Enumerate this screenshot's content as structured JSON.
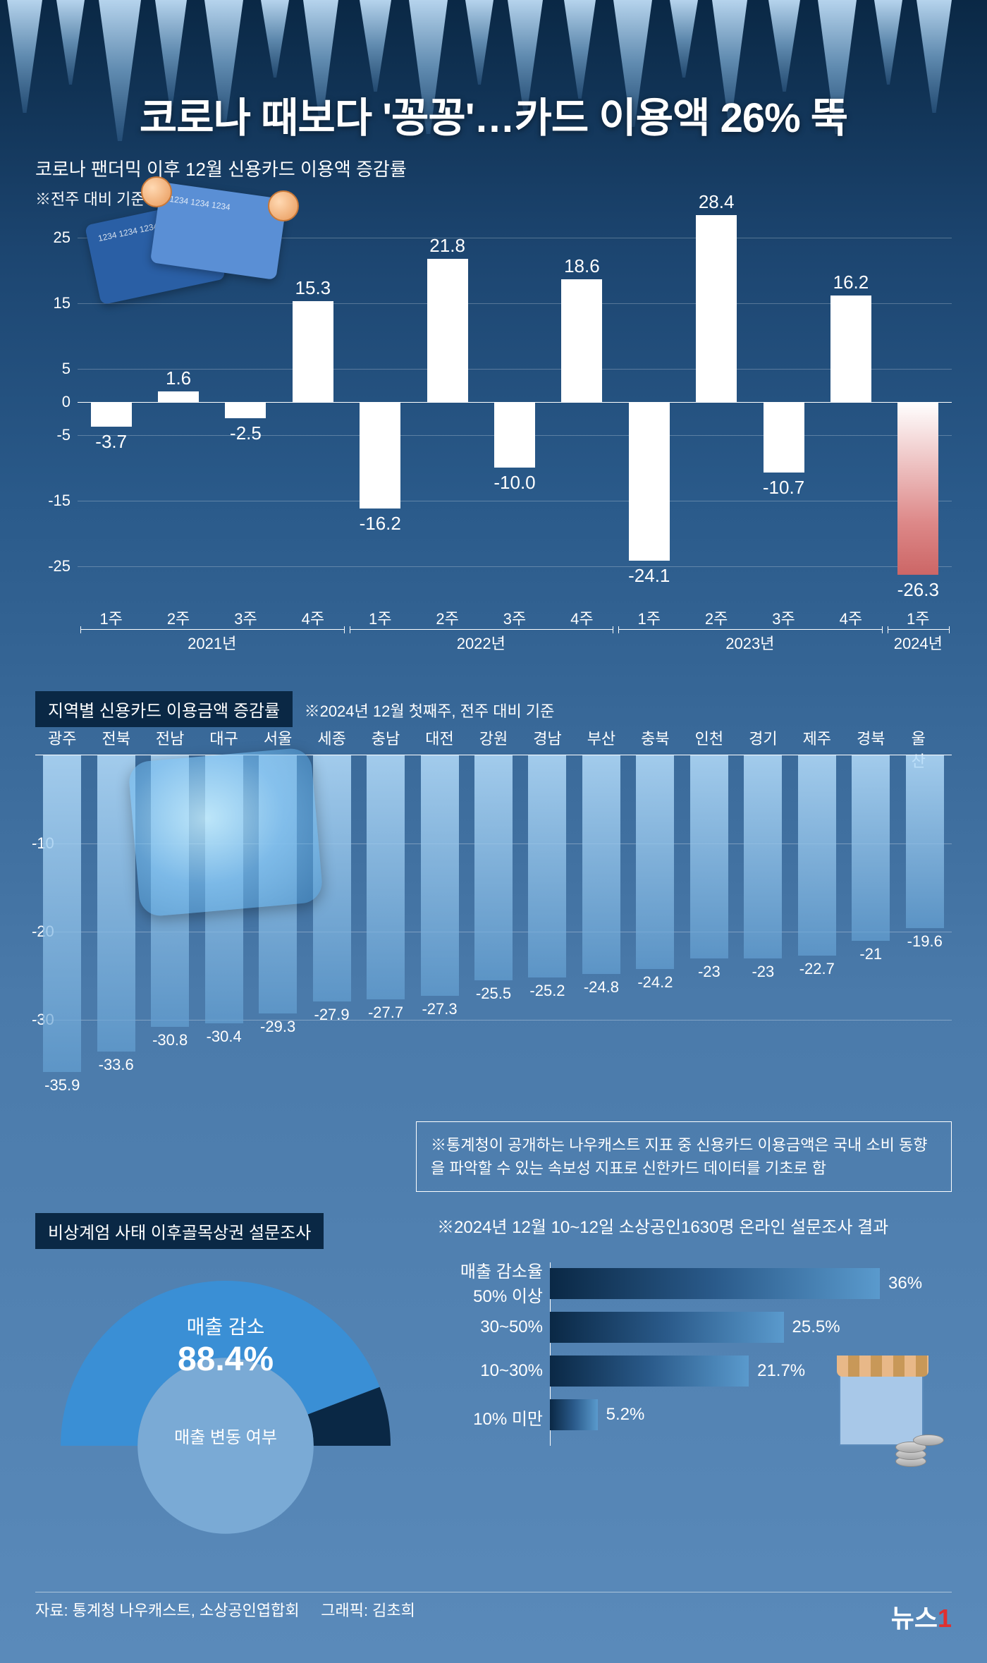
{
  "headline": "코로나 때보다 '꽁꽁'…카드 이용액 26% 뚝",
  "chart1": {
    "title": "코로나 팬더믹 이후 12월 신용카드 이용액 증감률",
    "subtitle": "※전주 대비 기준",
    "ylim": [
      -30,
      30
    ],
    "yticks": [
      -25,
      -15,
      -5,
      0,
      5,
      15,
      25
    ],
    "bar_color": "#ffffff",
    "last_bar_gradient": [
      "#ffffff",
      "#cc6666"
    ],
    "bars": [
      {
        "week": "1주",
        "value": -3.7,
        "label": "-3.7"
      },
      {
        "week": "2주",
        "value": 1.6,
        "label": "1.6"
      },
      {
        "week": "3주",
        "value": -2.5,
        "label": "-2.5"
      },
      {
        "week": "4주",
        "value": 15.3,
        "label": "15.3"
      },
      {
        "week": "1주",
        "value": -16.2,
        "label": "-16.2"
      },
      {
        "week": "2주",
        "value": 21.8,
        "label": "21.8"
      },
      {
        "week": "3주",
        "value": -10.0,
        "label": "-10.0"
      },
      {
        "week": "4주",
        "value": 18.6,
        "label": "18.6"
      },
      {
        "week": "1주",
        "value": -24.1,
        "label": "-24.1"
      },
      {
        "week": "2주",
        "value": 28.4,
        "label": "28.4"
      },
      {
        "week": "3주",
        "value": -10.7,
        "label": "-10.7"
      },
      {
        "week": "4주",
        "value": 16.2,
        "label": "16.2"
      },
      {
        "week": "1주",
        "value": -26.3,
        "label": "-26.3"
      }
    ],
    "year_groups": [
      {
        "label": "2021년",
        "start": 0,
        "end": 4
      },
      {
        "label": "2022년",
        "start": 4,
        "end": 8
      },
      {
        "label": "2023년",
        "start": 8,
        "end": 12
      },
      {
        "label": "2024년",
        "start": 12,
        "end": 13
      }
    ]
  },
  "chart2": {
    "title": "지역별 신용카드 이용금액 증감률",
    "subtitle": "※2024년 12월 첫째주, 전주 대비 기준",
    "ylim": [
      -40,
      0
    ],
    "yticks": [
      -10,
      -20,
      -30
    ],
    "bar_gradient": [
      "#b4dcfa",
      "#64a0d2"
    ],
    "bars": [
      {
        "region": "광주",
        "value": -35.9,
        "label": "-35.9"
      },
      {
        "region": "전북",
        "value": -33.6,
        "label": "-33.6"
      },
      {
        "region": "전남",
        "value": -30.8,
        "label": "-30.8"
      },
      {
        "region": "대구",
        "value": -30.4,
        "label": "-30.4"
      },
      {
        "region": "서울",
        "value": -29.3,
        "label": "-29.3"
      },
      {
        "region": "세종",
        "value": -27.9,
        "label": "-27.9"
      },
      {
        "region": "충남",
        "value": -27.7,
        "label": "-27.7"
      },
      {
        "region": "대전",
        "value": -27.3,
        "label": "-27.3"
      },
      {
        "region": "강원",
        "value": -25.5,
        "label": "-25.5"
      },
      {
        "region": "경남",
        "value": -25.2,
        "label": "-25.2"
      },
      {
        "region": "부산",
        "value": -24.8,
        "label": "-24.8"
      },
      {
        "region": "충북",
        "value": -24.2,
        "label": "-24.2"
      },
      {
        "region": "인천",
        "value": -23,
        "label": "-23"
      },
      {
        "region": "경기",
        "value": -23,
        "label": "-23"
      },
      {
        "region": "제주",
        "value": -22.7,
        "label": "-22.7"
      },
      {
        "region": "경북",
        "value": -21,
        "label": "-21"
      },
      {
        "region": "울산",
        "value": -19.6,
        "label": "-19.6"
      }
    ]
  },
  "note": "※통계청이 공개하는 나우캐스트 지표 중 신용카드 이용금액은 국내 소비 동향을 파악할 수 있는 속보성 지표로 신한카드 데이터를 기초로 함",
  "sec3": {
    "title": "비상계엄 사태 이후골목상권 설문조사",
    "right_title": "※2024년 12월 10~12일 소상공인1630명 온라인 설문조사 결과",
    "donut": {
      "main_label": "매출 감소",
      "main_pct": "88.4%",
      "sub_label": "매출 변동 여부",
      "arc_color_main": "#3a8fd5",
      "arc_color_rest": "#0a2845",
      "value": 88.4
    },
    "hbar": {
      "head": "매출 감소율",
      "max": 40,
      "bars": [
        {
          "label": "50% 이상",
          "value": 36,
          "pct": "36%"
        },
        {
          "label": "30~50%",
          "value": 25.5,
          "pct": "25.5%"
        },
        {
          "label": "10~30%",
          "value": 21.7,
          "pct": "21.7%"
        },
        {
          "label": "10% 미만",
          "value": 5.2,
          "pct": "5.2%"
        }
      ],
      "bar_gradient": [
        "#0a2845",
        "#5a9acd"
      ]
    }
  },
  "footer": {
    "source": "자료: 통계청 나우캐스트, 소상공인엽합회",
    "graphic": "그래픽: 김초희",
    "brand_a": "뉴스",
    "brand_b": "1"
  },
  "colors": {
    "bg_top": "#0a2845",
    "bg_bottom": "#5a8aba",
    "text": "#ffffff"
  }
}
